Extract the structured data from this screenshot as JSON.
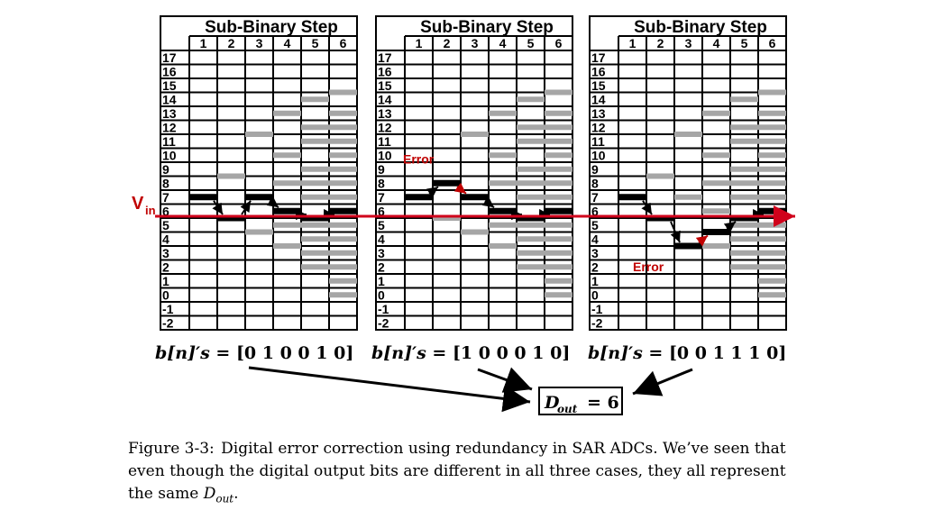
{
  "figure": {
    "panel_title": "Sub-Binary Step",
    "step_numbers": [
      "1",
      "2",
      "3",
      "4",
      "5",
      "6"
    ],
    "level_labels": [
      "17",
      "16",
      "15",
      "14",
      "13",
      "12",
      "11",
      "10",
      "9",
      "8",
      "7",
      "6",
      "5",
      "4",
      "3",
      "2",
      "1",
      "0",
      "-1",
      "-2"
    ],
    "vin_label_main": "V",
    "vin_label_sub": "in",
    "error_label": "Error",
    "bits_prefix": "b[n]′s = ",
    "panels": [
      {
        "bits": "[0 1 0 0 1 0]",
        "black_levels": [
          7,
          5.5,
          7,
          6,
          5.5,
          6
        ],
        "gray_levels": [
          [],
          [
            8.5
          ],
          [
            11.5,
            4.5
          ],
          [
            13,
            10,
            8,
            5,
            3.5
          ],
          [
            14,
            12,
            11,
            9,
            8,
            7,
            5,
            4,
            3,
            2
          ],
          [
            14.5,
            13,
            12,
            11,
            10,
            9,
            8,
            7,
            5,
            4,
            3,
            2,
            1,
            0
          ]
        ],
        "error": null
      },
      {
        "bits": "[1 0 0 0 1 0]",
        "black_levels": [
          7,
          8,
          7,
          6,
          5.5,
          6
        ],
        "gray_levels": [
          [],
          [
            5.5
          ],
          [
            11.5,
            4.5
          ],
          [
            13,
            10,
            8,
            5,
            3.5
          ],
          [
            14,
            12,
            11,
            9,
            8,
            7,
            5,
            4,
            3,
            2
          ],
          [
            14.5,
            13,
            12,
            11,
            10,
            9,
            8,
            7,
            5,
            4,
            3,
            2,
            1,
            0
          ]
        ],
        "error": {
          "from_step": 1
        }
      },
      {
        "bits": "[0 0 1 1 1 0]",
        "black_levels": [
          7,
          5.5,
          3.5,
          4.5,
          5.5,
          6
        ],
        "gray_levels": [
          [],
          [
            8.5
          ],
          [
            11.5,
            7
          ],
          [
            13,
            10,
            8,
            6,
            3.5
          ],
          [
            14,
            12,
            11,
            9,
            8,
            7,
            5,
            4,
            3,
            2
          ],
          [
            14.5,
            13,
            12,
            11,
            10,
            9,
            8,
            7,
            5,
            4,
            3,
            2,
            1,
            0
          ]
        ],
        "error": {
          "from_step": 2
        }
      }
    ],
    "dout_label": "D",
    "dout_sub": "out",
    "dout_value": "= 6"
  },
  "caption": {
    "label": "Figure 3-3:",
    "text_part1": "Digital error correction using redundancy in SAR ADCs. We’ve seen that even though the digital output bits are different in all three cases, they all represent the same ",
    "dout_main": "D",
    "dout_sub": "out",
    "text_end": "."
  },
  "colors": {
    "black_level": "#000000",
    "gray_level": "#a6a6a6",
    "vin_line": "#d0021b",
    "error": "#c00000"
  }
}
